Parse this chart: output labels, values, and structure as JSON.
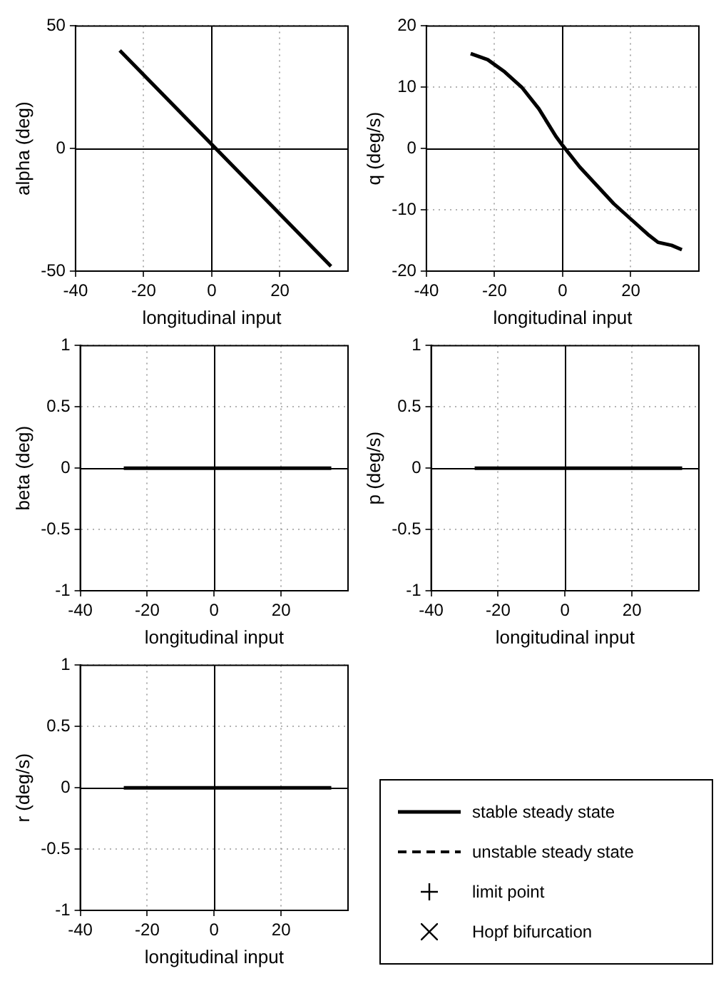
{
  "chart_data": [
    {
      "type": "line",
      "xlabel": "longitudinal input",
      "ylabel": "alpha (deg)",
      "xlim": [
        -40,
        40
      ],
      "xticks": [
        -40,
        -20,
        0,
        20
      ],
      "ylim": [
        -50,
        50
      ],
      "yticks": [
        -50,
        0,
        50
      ],
      "grid": true,
      "series": [
        {
          "color": "#000000",
          "x": [
            -27,
            35
          ],
          "values": [
            40,
            -48
          ]
        }
      ]
    },
    {
      "type": "line",
      "xlabel": "longitudinal input",
      "ylabel": "q (deg/s)",
      "xlim": [
        -40,
        40
      ],
      "xticks": [
        -40,
        -20,
        0,
        20
      ],
      "ylim": [
        -20,
        20
      ],
      "yticks": [
        -20,
        -10,
        0,
        10,
        20
      ],
      "grid": true,
      "series": [
        {
          "color": "#000000",
          "x": [
            -27,
            -22,
            -17,
            -12,
            -7,
            -2,
            0,
            5,
            10,
            15,
            20,
            25,
            28,
            32,
            35
          ],
          "values": [
            15.5,
            14.5,
            12.5,
            10,
            6.5,
            2,
            0.5,
            -3,
            -6,
            -9,
            -11.5,
            -14,
            -15.3,
            -15.8,
            -16.5
          ]
        }
      ]
    },
    {
      "type": "line",
      "xlabel": "longitudinal input",
      "ylabel": "beta (deg)",
      "xlim": [
        -40,
        40
      ],
      "xticks": [
        -40,
        -20,
        0,
        20
      ],
      "ylim": [
        -1,
        1
      ],
      "yticks": [
        -1,
        -0.5,
        0,
        0.5,
        1
      ],
      "grid": true,
      "series": [
        {
          "color": "#000000",
          "x": [
            -27,
            35
          ],
          "values": [
            0,
            0
          ]
        }
      ]
    },
    {
      "type": "line",
      "xlabel": "longitudinal input",
      "ylabel": "p (deg/s)",
      "xlim": [
        -40,
        40
      ],
      "xticks": [
        -40,
        -20,
        0,
        20
      ],
      "ylim": [
        -1,
        1
      ],
      "yticks": [
        -1,
        -0.5,
        0,
        0.5,
        1
      ],
      "grid": true,
      "series": [
        {
          "color": "#000000",
          "x": [
            -27,
            35
          ],
          "values": [
            0,
            0
          ]
        }
      ]
    },
    {
      "type": "line",
      "xlabel": "longitudinal input",
      "ylabel": "r (deg/s)",
      "xlim": [
        -40,
        40
      ],
      "xticks": [
        -40,
        -20,
        0,
        20
      ],
      "ylim": [
        -1,
        1
      ],
      "yticks": [
        -1,
        -0.5,
        0,
        0.5,
        1
      ],
      "grid": true,
      "series": [
        {
          "color": "#000000",
          "x": [
            -27,
            35
          ],
          "values": [
            0,
            0
          ]
        }
      ]
    },
    {
      "type": "other",
      "annotations": [
        "stable steady state",
        "unstable steady state",
        "limit point",
        "Hopf bifurcation"
      ]
    }
  ]
}
